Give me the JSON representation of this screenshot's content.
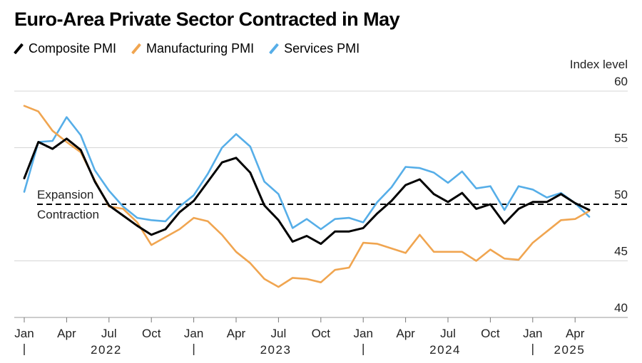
{
  "title": "Euro-Area Private Sector Contracted in May",
  "chart_data": {
    "type": "line",
    "title": "Euro-Area Private Sector Contracted in May",
    "ylabel": "Index level",
    "ylim": [
      40,
      60
    ],
    "yticks": [
      40,
      45,
      50,
      55,
      60
    ],
    "reference_line": {
      "value": 50,
      "label_above": "Expansion",
      "label_below": "Contraction"
    },
    "x_month_ticks": [
      "Jan",
      "Apr",
      "Jul",
      "Oct",
      "Jan",
      "Apr",
      "Jul",
      "Oct",
      "Jan",
      "Apr",
      "Jul",
      "Oct",
      "Jan",
      "Apr"
    ],
    "years": [
      "2022",
      "2023",
      "2024",
      "2025"
    ],
    "x": [
      "2022-01",
      "2022-02",
      "2022-03",
      "2022-04",
      "2022-05",
      "2022-06",
      "2022-07",
      "2022-08",
      "2022-09",
      "2022-10",
      "2022-11",
      "2022-12",
      "2023-01",
      "2023-02",
      "2023-03",
      "2023-04",
      "2023-05",
      "2023-06",
      "2023-07",
      "2023-08",
      "2023-09",
      "2023-10",
      "2023-11",
      "2023-12",
      "2024-01",
      "2024-02",
      "2024-03",
      "2024-04",
      "2024-05",
      "2024-06",
      "2024-07",
      "2024-08",
      "2024-09",
      "2024-10",
      "2024-11",
      "2024-12",
      "2025-01",
      "2025-02",
      "2025-03",
      "2025-04",
      "2025-05"
    ],
    "series": [
      {
        "name": "Composite PMI",
        "color": "#000000",
        "values": [
          52.3,
          55.5,
          54.9,
          55.8,
          54.8,
          52.0,
          49.9,
          49.0,
          48.1,
          47.3,
          47.8,
          49.3,
          50.3,
          52.0,
          53.7,
          54.1,
          52.8,
          49.9,
          48.6,
          46.7,
          47.2,
          46.5,
          47.6,
          47.6,
          47.9,
          49.2,
          50.3,
          51.7,
          52.2,
          50.9,
          50.2,
          51.0,
          49.6,
          50.0,
          48.3,
          49.6,
          50.2,
          50.2,
          50.9,
          50.1,
          49.5
        ]
      },
      {
        "name": "Manufacturing PMI",
        "color": "#f0a550",
        "values": [
          58.7,
          58.2,
          56.5,
          55.5,
          54.6,
          52.1,
          49.8,
          49.6,
          48.4,
          46.4,
          47.1,
          47.8,
          48.8,
          48.5,
          47.3,
          45.8,
          44.8,
          43.4,
          42.7,
          43.5,
          43.4,
          43.1,
          44.2,
          44.4,
          46.6,
          46.5,
          46.1,
          45.7,
          47.3,
          45.8,
          45.8,
          45.8,
          45.0,
          46.0,
          45.2,
          45.1,
          46.6,
          47.6,
          48.6,
          48.7,
          49.4
        ]
      },
      {
        "name": "Services PMI",
        "color": "#56aee8",
        "values": [
          51.1,
          55.5,
          55.6,
          57.7,
          56.1,
          53.0,
          51.2,
          49.8,
          48.8,
          48.6,
          48.5,
          49.8,
          50.8,
          52.7,
          55.0,
          56.2,
          55.1,
          52.0,
          50.9,
          47.9,
          48.7,
          47.8,
          48.7,
          48.8,
          48.4,
          50.2,
          51.5,
          53.3,
          53.2,
          52.8,
          51.9,
          52.9,
          51.4,
          51.6,
          49.5,
          51.6,
          51.3,
          50.6,
          51.0,
          50.1,
          48.9
        ]
      }
    ]
  }
}
